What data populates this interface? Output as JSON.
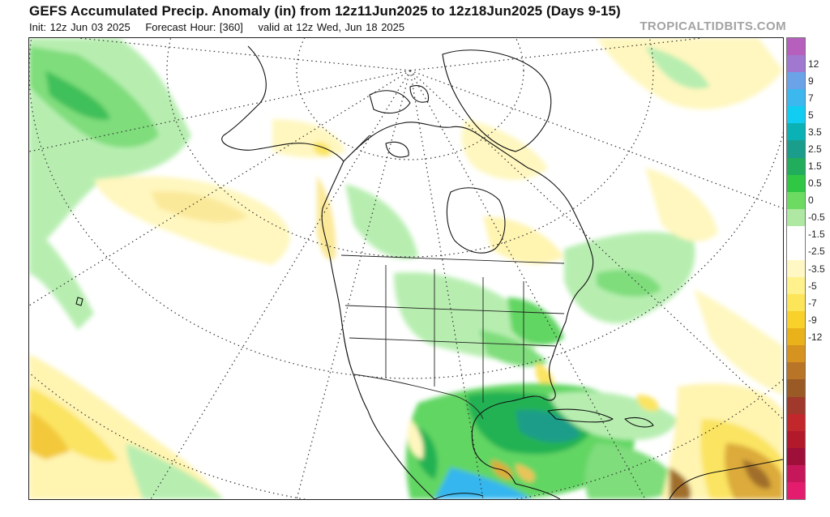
{
  "header": {
    "title": "GEFS Accumulated Precip. Anomaly (in) from 12z11Jun2025 to 12z18Jun2025 (Days 9-15)",
    "init": "Init: 12z Jun 03 2025",
    "forecast_hour": "Forecast Hour: [360]",
    "valid": "valid at 12z Wed, Jun 18 2025",
    "brand": "TROPICALTIDBITS.COM"
  },
  "colorbar": {
    "unit": "in",
    "labels": [
      "12",
      "9",
      "7",
      "5",
      "3.5",
      "2.5",
      "1.5",
      "0.5",
      "0",
      "-0.5",
      "-1.5",
      "-2.5",
      "-3.5",
      "-5",
      "-7",
      "-9",
      "-12"
    ],
    "colors": [
      "#b65fbd",
      "#a178d0",
      "#6aa3e8",
      "#3cb8ee",
      "#12cdf2",
      "#0ab2b5",
      "#1a9d8a",
      "#22ad5d",
      "#2fc743",
      "#6ddb62",
      "#aee8a2",
      "#ffffff",
      "#ffffff",
      "#fff8c4",
      "#fff18c",
      "#fde55a",
      "#f8d12a",
      "#e9b21a",
      "#d69320",
      "#b87527",
      "#9a5a25",
      "#a0392b",
      "#c2282b",
      "#b21a2c",
      "#9e0f39",
      "#c6175a",
      "#e31c6e"
    ]
  },
  "map": {
    "projection": "polar stereographic",
    "region": "North America",
    "anomaly_colors": {
      "wet_light": "#b7eeb0",
      "wet_moderate": "#62d663",
      "wet_heavy": "#24b252",
      "wet_very_heavy": "#1a9d8a",
      "wet_extreme": "#35b6ee",
      "dry_light": "#fff7bf",
      "dry_moderate": "#fbe462",
      "dry_heavy": "#dcab3a",
      "dry_very_heavy": "#a06e2c"
    }
  }
}
